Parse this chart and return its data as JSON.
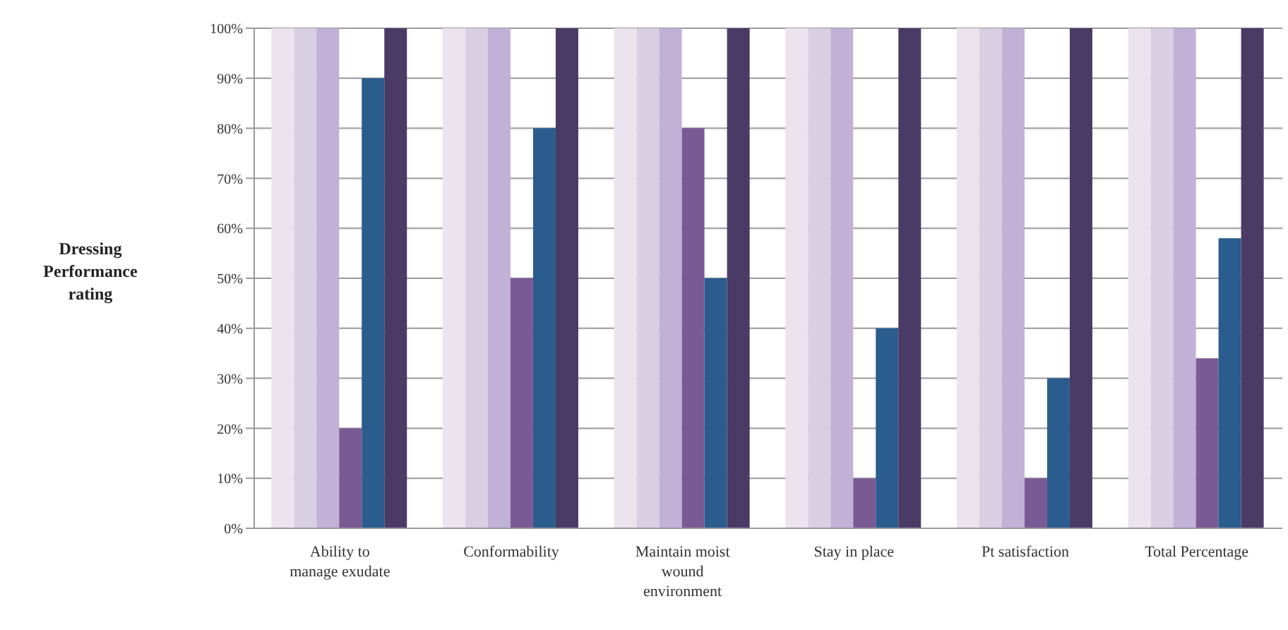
{
  "chart_data": {
    "type": "bar",
    "ylabel": "Dressing Performance rating",
    "categories": [
      "Ability to manage exudate",
      "Conformability",
      "Maintain moist wound environment",
      "Stay in place",
      "Pt satisfaction",
      "Total Percentage"
    ],
    "series": [
      {
        "color": "#ebe3ee",
        "values": [
          100,
          100,
          100,
          100,
          100,
          100
        ]
      },
      {
        "color": "#d9cfe3",
        "values": [
          100,
          100,
          100,
          100,
          100,
          100
        ]
      },
      {
        "color": "#c2b1d6",
        "values": [
          100,
          100,
          100,
          100,
          100,
          100
        ]
      },
      {
        "color": "#7a5a94",
        "values": [
          20,
          50,
          80,
          10,
          10,
          34
        ]
      },
      {
        "color": "#2a5c8e",
        "values": [
          90,
          80,
          50,
          40,
          30,
          58
        ]
      },
      {
        "color": "#4a3a66",
        "values": [
          100,
          100,
          100,
          100,
          100,
          100
        ]
      }
    ],
    "ylim": [
      0,
      100
    ],
    "yticks": [
      {
        "value": 0,
        "label": "0%"
      },
      {
        "value": 10,
        "label": "10%"
      },
      {
        "value": 20,
        "label": "20%"
      },
      {
        "value": 30,
        "label": "30%"
      },
      {
        "value": 40,
        "label": "40%"
      },
      {
        "value": 50,
        "label": "50%"
      },
      {
        "value": 60,
        "label": "60%"
      },
      {
        "value": 70,
        "label": "70%"
      },
      {
        "value": 80,
        "label": "80%"
      },
      {
        "value": 90,
        "label": "90%"
      },
      {
        "value": 100,
        "label": "100%"
      }
    ],
    "grid": "y",
    "legend": false
  }
}
